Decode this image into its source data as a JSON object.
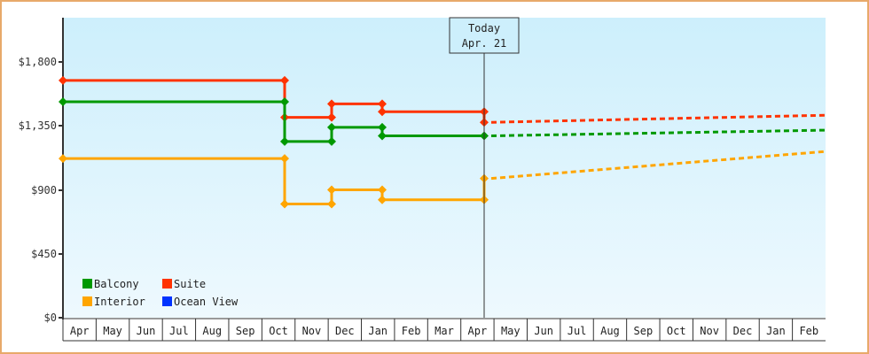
{
  "chart_data": {
    "type": "line",
    "title": "",
    "xlabel": "",
    "ylabel": "",
    "ylim": [
      0,
      2100
    ],
    "grid": false,
    "legend_position": "bottom-left inside plot",
    "y_ticks": [
      {
        "value": 0,
        "label": "$0"
      },
      {
        "value": 450,
        "label": "$450"
      },
      {
        "value": 900,
        "label": "$900"
      },
      {
        "value": 1350,
        "label": "$1,350"
      },
      {
        "value": 1800,
        "label": "$1,800"
      }
    ],
    "x_ticks": [
      "Apr",
      "May",
      "Jun",
      "Jul",
      "Aug",
      "Sep",
      "Oct",
      "Nov",
      "Dec",
      "Jan",
      "Feb",
      "Mar",
      "Apr",
      "May",
      "Jun",
      "Jul",
      "Aug",
      "Sep",
      "Oct",
      "Nov",
      "Dec",
      "Jan",
      "Feb"
    ],
    "annotation": {
      "line1": "Today",
      "line2": "Apr. 21"
    },
    "legend": [
      {
        "name": "Balcony",
        "color": "#009900"
      },
      {
        "name": "Suite",
        "color": "#ff3300"
      },
      {
        "name": "Interior",
        "color": "#ffa500"
      },
      {
        "name": "Ocean View",
        "color": "#0033ff"
      }
    ],
    "series": [
      {
        "name": "Suite",
        "color": "#ff3300",
        "historical": [
          {
            "x": "Apr (start)",
            "y": 1670
          },
          {
            "x": "mid Oct",
            "y": 1670
          },
          {
            "x": "mid Oct",
            "y": 1410
          },
          {
            "x": "start Dec",
            "y": 1410
          },
          {
            "x": "start Dec",
            "y": 1505
          },
          {
            "x": "mid Jan",
            "y": 1505
          },
          {
            "x": "mid Jan",
            "y": 1450
          },
          {
            "x": "Apr 21",
            "y": 1450
          },
          {
            "x": "Apr 21",
            "y": 1375
          }
        ],
        "forecast": [
          {
            "x": "Apr 21",
            "y": 1375
          },
          {
            "x": "end Feb",
            "y": 1425
          }
        ]
      },
      {
        "name": "Balcony",
        "color": "#009900",
        "historical": [
          {
            "x": "Apr (start)",
            "y": 1520
          },
          {
            "x": "mid Oct",
            "y": 1520
          },
          {
            "x": "mid Oct",
            "y": 1240
          },
          {
            "x": "start Dec",
            "y": 1240
          },
          {
            "x": "start Dec",
            "y": 1340
          },
          {
            "x": "mid Jan",
            "y": 1340
          },
          {
            "x": "mid Jan",
            "y": 1280
          },
          {
            "x": "Apr 21",
            "y": 1280
          }
        ],
        "forecast": [
          {
            "x": "Apr 21",
            "y": 1280
          },
          {
            "x": "end Feb",
            "y": 1320
          }
        ]
      },
      {
        "name": "Interior",
        "color": "#ffa500",
        "historical": [
          {
            "x": "Apr (start)",
            "y": 1120
          },
          {
            "x": "mid Oct",
            "y": 1120
          },
          {
            "x": "mid Oct",
            "y": 800
          },
          {
            "x": "start Dec",
            "y": 800
          },
          {
            "x": "start Dec",
            "y": 900
          },
          {
            "x": "mid Jan",
            "y": 900
          },
          {
            "x": "mid Jan",
            "y": 830
          },
          {
            "x": "Apr 21",
            "y": 830
          },
          {
            "x": "Apr 21",
            "y": 980
          }
        ],
        "forecast": [
          {
            "x": "Apr 21",
            "y": 980
          },
          {
            "x": "end Feb",
            "y": 1170
          }
        ]
      },
      {
        "name": "Ocean View",
        "color": "#0033ff",
        "historical": [],
        "forecast": []
      }
    ]
  }
}
